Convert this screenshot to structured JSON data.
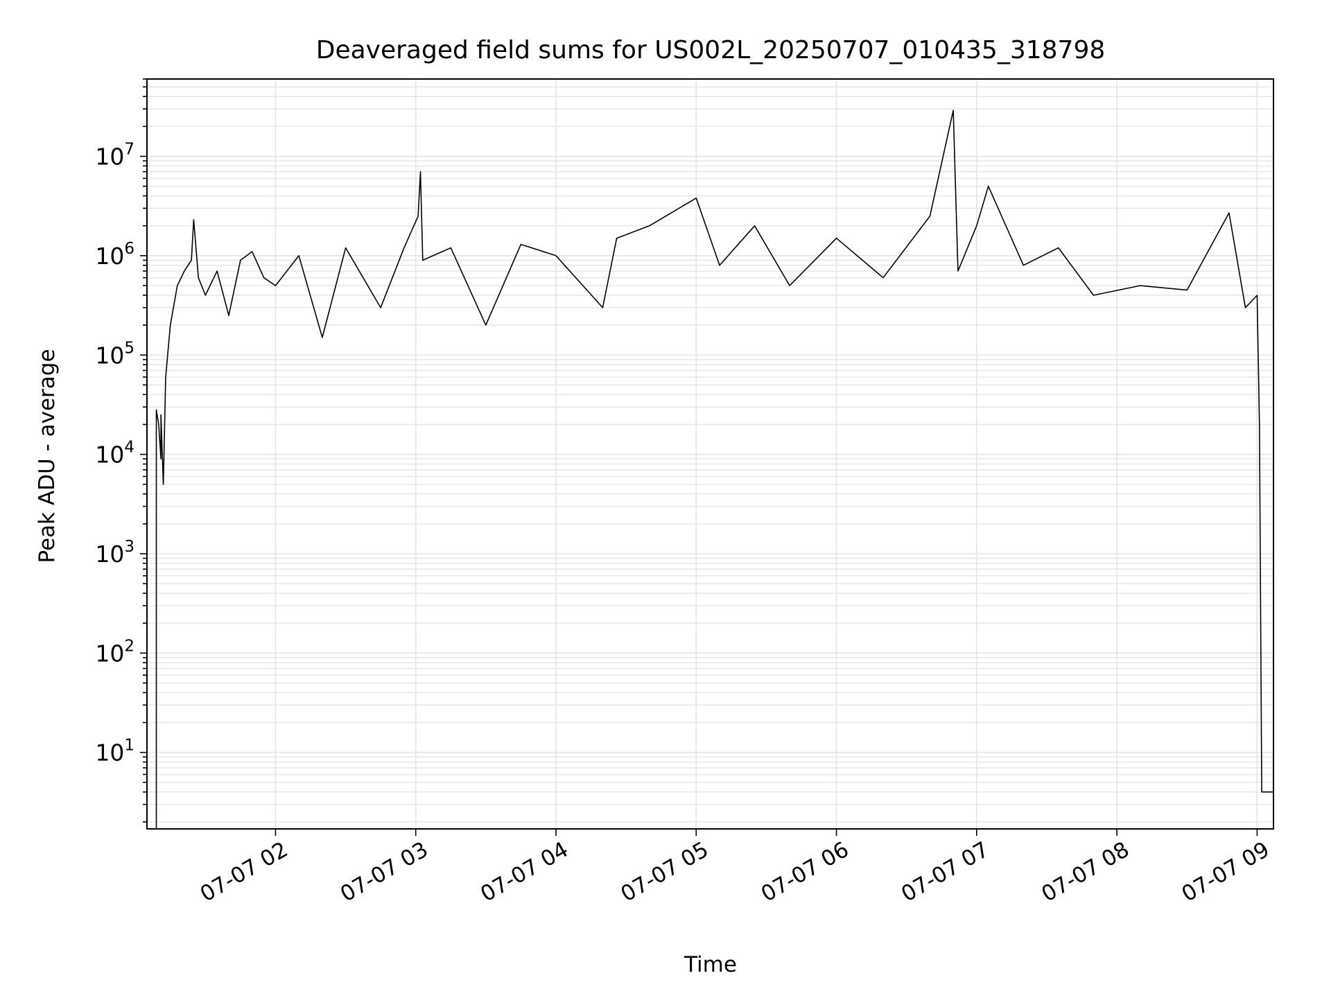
{
  "chart_data": {
    "type": "line",
    "title": "Deaveraged field sums for US002L_20250707_010435_318798",
    "xlabel": "Time",
    "ylabel": "Peak ADU - average",
    "yscale": "log",
    "ylim": [
      1.7,
      60000000
    ],
    "xlim": [
      "2025-07-07 01:05",
      "2025-07-07 09:07"
    ],
    "grid": true,
    "line_color": "#000000",
    "grid_color": "#e6e6e6",
    "x_tick_labels": [
      "07-07 02",
      "07-07 03",
      "07-07 04",
      "07-07 05",
      "07-07 06",
      "07-07 07",
      "07-07 08",
      "07-07 09"
    ],
    "x_ticks": [
      "2025-07-07 02:00",
      "2025-07-07 03:00",
      "2025-07-07 04:00",
      "2025-07-07 05:00",
      "2025-07-07 06:00",
      "2025-07-07 07:00",
      "2025-07-07 08:00",
      "2025-07-07 09:00"
    ],
    "y_ticks": [
      {
        "value": 10,
        "mantissa": "10",
        "exp": "1"
      },
      {
        "value": 100,
        "mantissa": "10",
        "exp": "2"
      },
      {
        "value": 1000,
        "mantissa": "10",
        "exp": "3"
      },
      {
        "value": 10000,
        "mantissa": "10",
        "exp": "4"
      },
      {
        "value": 100000,
        "mantissa": "10",
        "exp": "5"
      },
      {
        "value": 1000000,
        "mantissa": "10",
        "exp": "6"
      },
      {
        "value": 10000000,
        "mantissa": "10",
        "exp": "7"
      }
    ],
    "series": [
      {
        "points": [
          [
            "2025-07-07 01:09",
            1.7
          ],
          [
            "2025-07-07 01:09",
            28000
          ],
          [
            "2025-07-07 01:10",
            20000
          ],
          [
            "2025-07-07 01:11",
            9000
          ],
          [
            "2025-07-07 01:11",
            25000
          ],
          [
            "2025-07-07 01:12",
            5000
          ],
          [
            "2025-07-07 01:13",
            60000
          ],
          [
            "2025-07-07 01:15",
            200000
          ],
          [
            "2025-07-07 01:18",
            500000
          ],
          [
            "2025-07-07 01:21",
            700000
          ],
          [
            "2025-07-07 01:24",
            900000
          ],
          [
            "2025-07-07 01:25",
            2300000
          ],
          [
            "2025-07-07 01:27",
            600000
          ],
          [
            "2025-07-07 01:30",
            400000
          ],
          [
            "2025-07-07 01:35",
            700000
          ],
          [
            "2025-07-07 01:40",
            250000
          ],
          [
            "2025-07-07 01:45",
            900000
          ],
          [
            "2025-07-07 01:50",
            1100000
          ],
          [
            "2025-07-07 01:55",
            600000
          ],
          [
            "2025-07-07 02:00",
            500000
          ],
          [
            "2025-07-07 02:10",
            1000000
          ],
          [
            "2025-07-07 02:20",
            150000
          ],
          [
            "2025-07-07 02:30",
            1200000
          ],
          [
            "2025-07-07 02:45",
            300000
          ],
          [
            "2025-07-07 02:55",
            1200000
          ],
          [
            "2025-07-07 03:01",
            2500000
          ],
          [
            "2025-07-07 03:02",
            7000000
          ],
          [
            "2025-07-07 03:03",
            900000
          ],
          [
            "2025-07-07 03:15",
            1200000
          ],
          [
            "2025-07-07 03:30",
            200000
          ],
          [
            "2025-07-07 03:45",
            1300000
          ],
          [
            "2025-07-07 04:00",
            1000000
          ],
          [
            "2025-07-07 04:20",
            300000
          ],
          [
            "2025-07-07 04:26",
            1500000
          ],
          [
            "2025-07-07 04:40",
            2000000
          ],
          [
            "2025-07-07 05:00",
            3800000
          ],
          [
            "2025-07-07 05:10",
            800000
          ],
          [
            "2025-07-07 05:25",
            2000000
          ],
          [
            "2025-07-07 05:40",
            500000
          ],
          [
            "2025-07-07 06:00",
            1500000
          ],
          [
            "2025-07-07 06:20",
            600000
          ],
          [
            "2025-07-07 06:40",
            2500000
          ],
          [
            "2025-07-07 06:50",
            29000000
          ],
          [
            "2025-07-07 06:52",
            700000
          ],
          [
            "2025-07-07 07:00",
            2000000
          ],
          [
            "2025-07-07 07:05",
            5000000
          ],
          [
            "2025-07-07 07:20",
            800000
          ],
          [
            "2025-07-07 07:35",
            1200000
          ],
          [
            "2025-07-07 07:50",
            400000
          ],
          [
            "2025-07-07 08:10",
            500000
          ],
          [
            "2025-07-07 08:30",
            450000
          ],
          [
            "2025-07-07 08:48",
            2700000
          ],
          [
            "2025-07-07 08:55",
            300000
          ],
          [
            "2025-07-07 09:00",
            400000
          ],
          [
            "2025-07-07 09:01",
            20000
          ],
          [
            "2025-07-07 09:02",
            4
          ],
          [
            "2025-07-07 09:07",
            4
          ]
        ]
      }
    ]
  }
}
